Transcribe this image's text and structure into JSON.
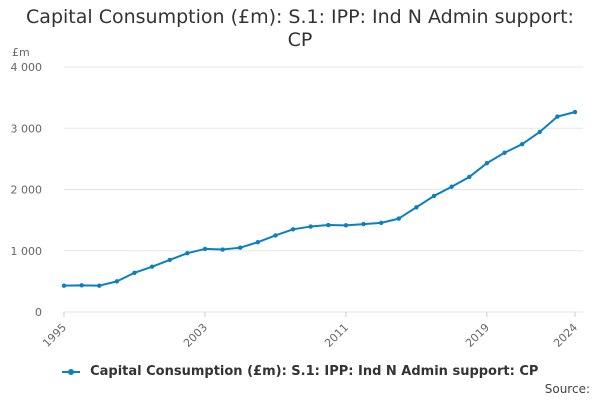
{
  "chart_data": {
    "type": "line",
    "title": "Capital Consumption (£m): S.1: IPP: Ind N Admin support: CP",
    "ylabel": "£m",
    "xlabel": "",
    "x_ticks": [
      "1995",
      "2003",
      "2011",
      "2019",
      "2024"
    ],
    "y_ticks": [
      "0",
      "1 000",
      "2 000",
      "3 000",
      "4 000"
    ],
    "ylim": [
      0,
      4000
    ],
    "xlim": [
      1995,
      2024
    ],
    "grid": "horizontal",
    "legend": "bottom",
    "colors": {
      "series": "#0c7fc1",
      "grid": "#e6e6e6"
    },
    "series": [
      {
        "name": "Capital Consumption (£m): S.1: IPP: Ind N Admin support: CP",
        "x": [
          1995,
          1996,
          1997,
          1998,
          1999,
          2000,
          2001,
          2002,
          2003,
          2004,
          2005,
          2006,
          2007,
          2008,
          2009,
          2010,
          2011,
          2012,
          2013,
          2014,
          2015,
          2016,
          2017,
          2018,
          2019,
          2020,
          2021,
          2022,
          2023,
          2024
        ],
        "values": [
          430,
          435,
          430,
          500,
          640,
          740,
          850,
          960,
          1030,
          1020,
          1050,
          1140,
          1250,
          1350,
          1395,
          1420,
          1415,
          1435,
          1455,
          1525,
          1710,
          1895,
          2045,
          2205,
          2430,
          2600,
          2740,
          2940,
          3190,
          3265
        ]
      }
    ]
  },
  "source_label": "Source:"
}
